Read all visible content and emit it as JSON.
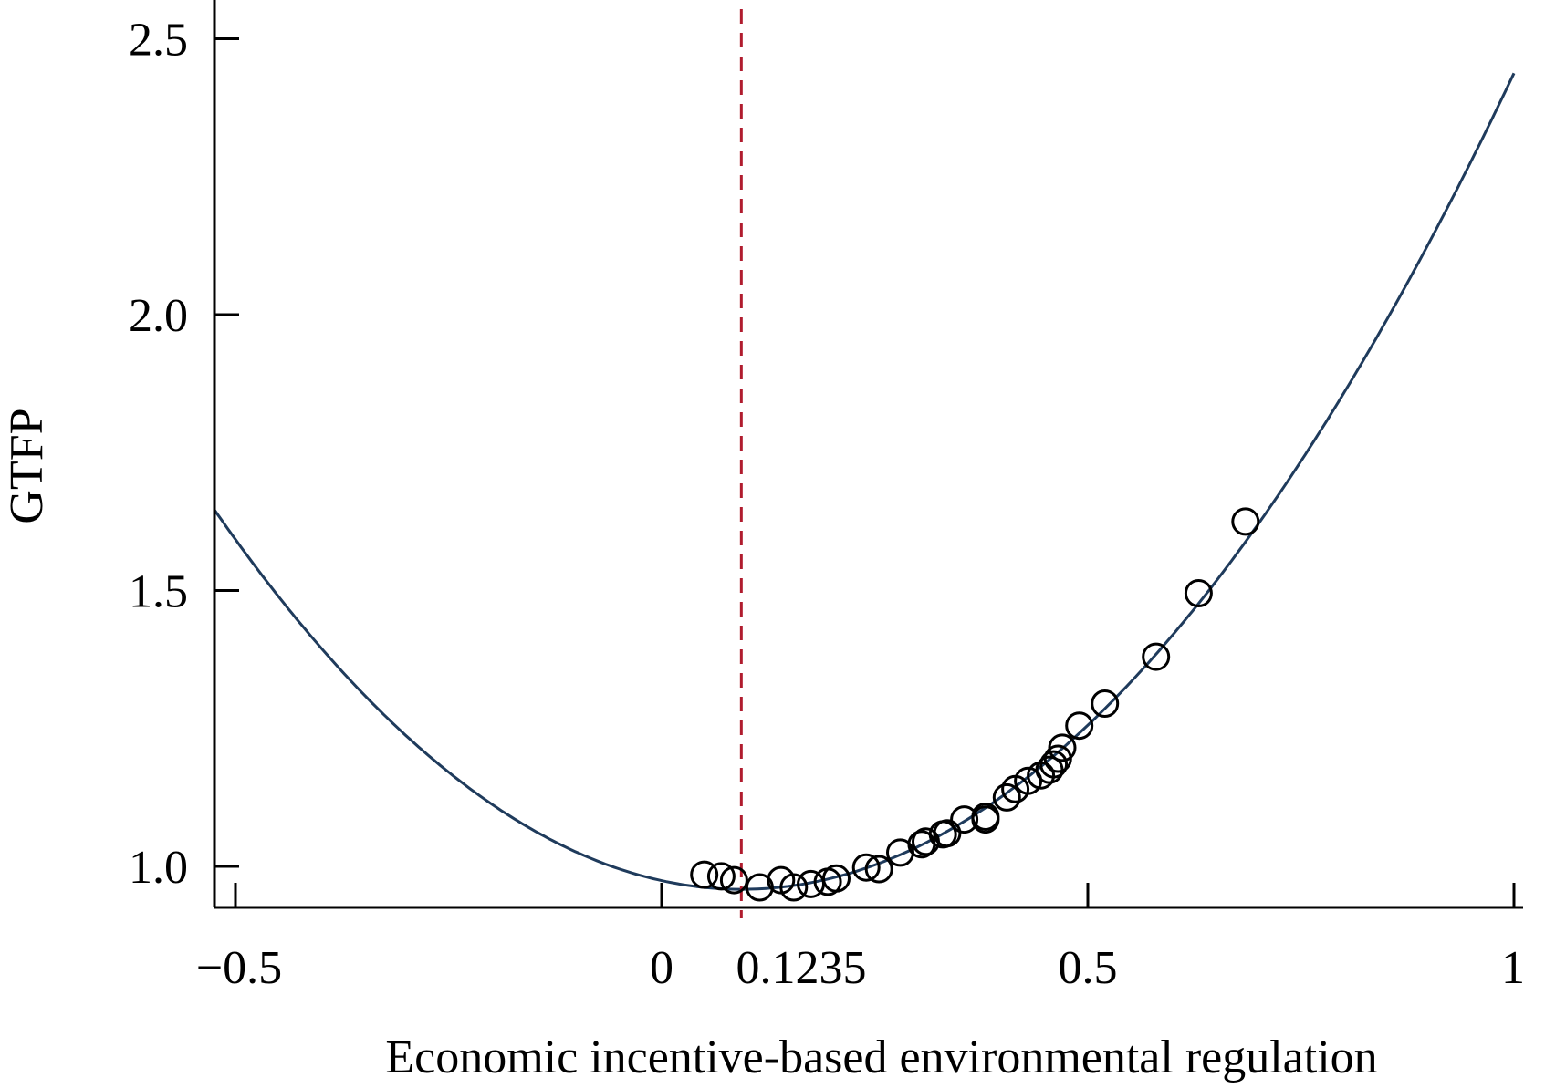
{
  "chart_data": {
    "type": "scatter",
    "xlabel": "Economic incentive-based environmental regulation",
    "ylabel": "GTFP",
    "xlim": [
      -0.53,
      1.0
    ],
    "ylim": [
      0.925,
      2.57
    ],
    "x_ticks": [
      {
        "value": -0.5,
        "label": "−0.5"
      },
      {
        "value": 0,
        "label": "0"
      },
      {
        "value": 0.1235,
        "label": "0.1235"
      },
      {
        "value": 0.5,
        "label": "0.5"
      },
      {
        "value": 1,
        "label": "1"
      }
    ],
    "y_ticks": [
      {
        "value": 1.0,
        "label": "1.0"
      },
      {
        "value": 1.5,
        "label": "1.5"
      },
      {
        "value": 2.0,
        "label": "2.0"
      },
      {
        "value": 2.5,
        "label": "2.5"
      }
    ],
    "fitted_curve": {
      "form": "quadratic",
      "coefficients": {
        "a": 1.8,
        "b": -0.3366,
        "c": 0.9742
      },
      "x_range": [
        -0.53,
        1.0
      ],
      "color": "#1f3b5c"
    },
    "threshold_line": {
      "x": 0.0935,
      "color": "#b01c2e",
      "style": "dashed"
    },
    "points": [
      {
        "x": 0.05,
        "y": 0.985
      },
      {
        "x": 0.07,
        "y": 0.982
      },
      {
        "x": 0.085,
        "y": 0.975
      },
      {
        "x": 0.115,
        "y": 0.962
      },
      {
        "x": 0.14,
        "y": 0.975
      },
      {
        "x": 0.155,
        "y": 0.962
      },
      {
        "x": 0.175,
        "y": 0.968
      },
      {
        "x": 0.195,
        "y": 0.972
      },
      {
        "x": 0.205,
        "y": 0.978
      },
      {
        "x": 0.24,
        "y": 0.998
      },
      {
        "x": 0.255,
        "y": 0.995
      },
      {
        "x": 0.28,
        "y": 1.025
      },
      {
        "x": 0.305,
        "y": 1.04
      },
      {
        "x": 0.31,
        "y": 1.045
      },
      {
        "x": 0.33,
        "y": 1.058
      },
      {
        "x": 0.335,
        "y": 1.06
      },
      {
        "x": 0.355,
        "y": 1.085
      },
      {
        "x": 0.38,
        "y": 1.085
      },
      {
        "x": 0.38,
        "y": 1.09
      },
      {
        "x": 0.405,
        "y": 1.125
      },
      {
        "x": 0.415,
        "y": 1.14
      },
      {
        "x": 0.43,
        "y": 1.155
      },
      {
        "x": 0.445,
        "y": 1.165
      },
      {
        "x": 0.455,
        "y": 1.175
      },
      {
        "x": 0.46,
        "y": 1.185
      },
      {
        "x": 0.465,
        "y": 1.195
      },
      {
        "x": 0.47,
        "y": 1.215
      },
      {
        "x": 0.49,
        "y": 1.255
      },
      {
        "x": 0.52,
        "y": 1.295
      },
      {
        "x": 0.58,
        "y": 1.38
      },
      {
        "x": 0.63,
        "y": 1.495
      },
      {
        "x": 0.685,
        "y": 1.625
      }
    ],
    "colors": {
      "curve": "#1f3b5c",
      "threshold": "#b01c2e",
      "markers": "#000000",
      "axis": "#000000"
    }
  }
}
